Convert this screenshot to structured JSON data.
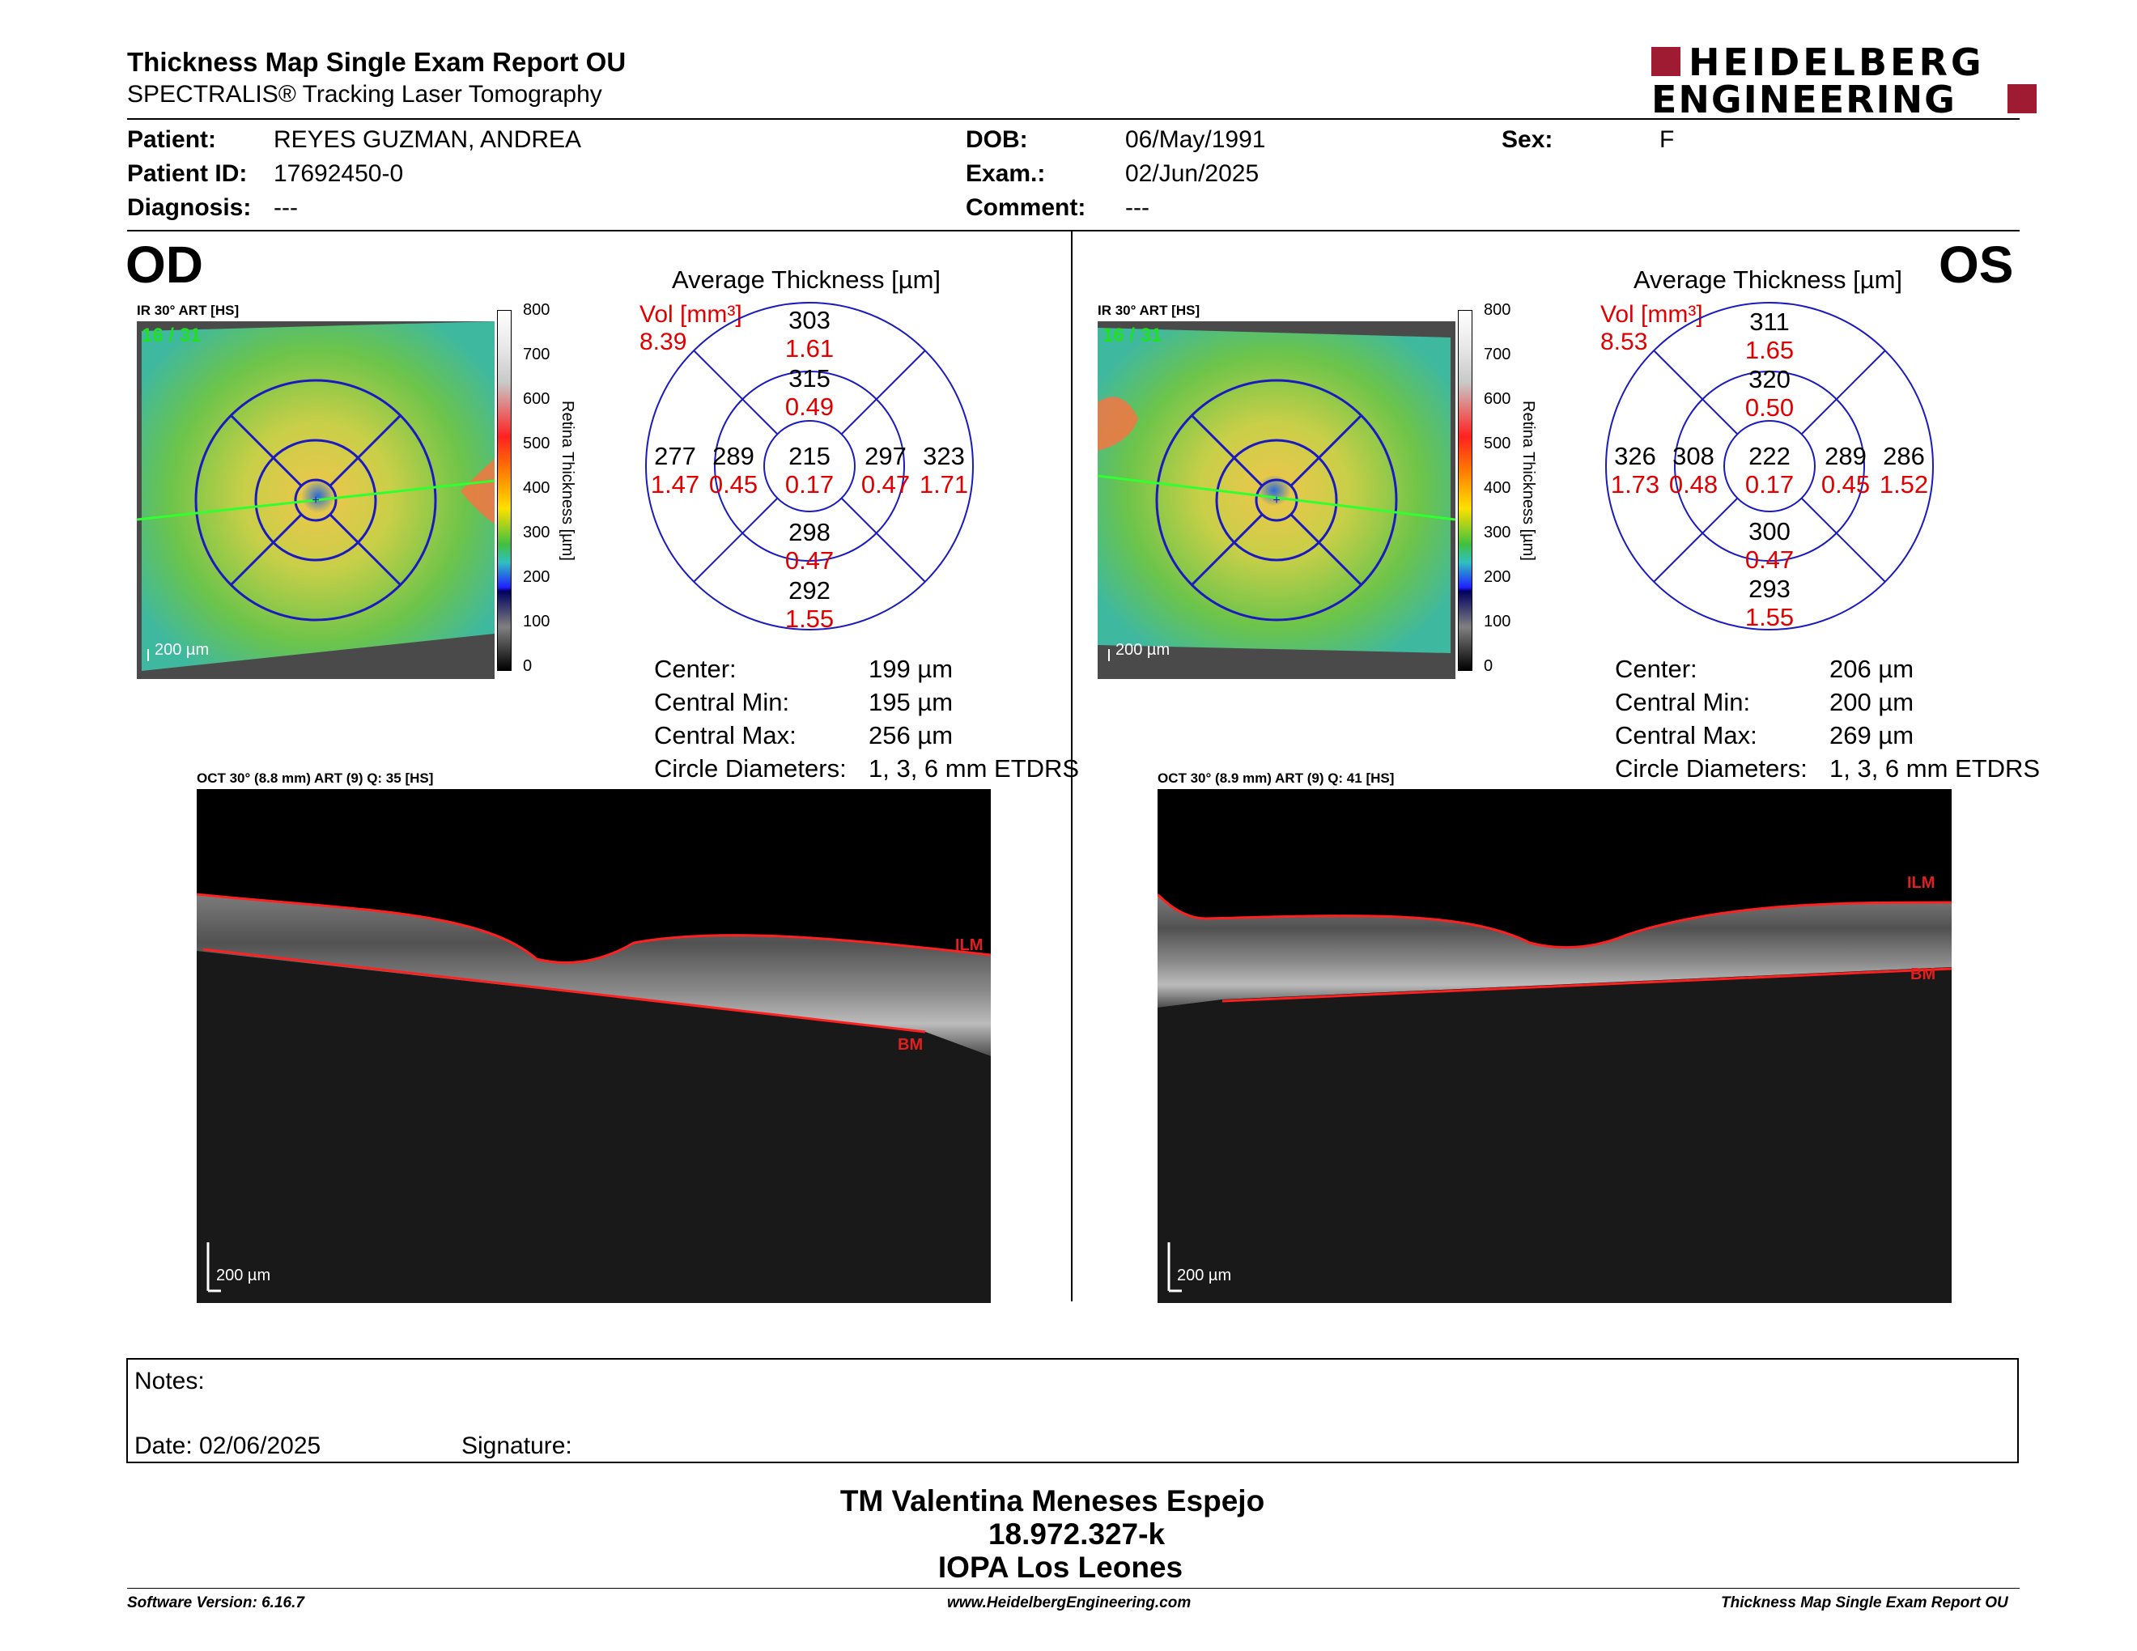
{
  "header": {
    "title": "Thickness Map Single Exam Report OU",
    "subtitle": "SPECTRALIS® Tracking Laser Tomography",
    "logo_line1": "HEIDELBERG",
    "logo_line2": "ENGINEERING"
  },
  "patient": {
    "patient_label": "Patient:",
    "patient_value": "REYES GUZMAN, ANDREA",
    "id_label": "Patient ID:",
    "id_value": "17692450-0",
    "diagnosis_label": "Diagnosis:",
    "diagnosis_value": "---",
    "dob_label": "DOB:",
    "dob_value": "06/May/1991",
    "exam_label": "Exam.:",
    "exam_value": "02/Jun/2025",
    "comment_label": "Comment:",
    "comment_value": "---",
    "sex_label": "Sex:",
    "sex_value": "F"
  },
  "od": {
    "eye": "OD",
    "ir_label": "IR 30° ART [HS]",
    "frame": "16 / 31",
    "scale": "200 µm",
    "avg_title": "Average Thickness [µm]",
    "vol_label": "Vol [mm³]",
    "vol_value": "8.39",
    "grid": {
      "center": {
        "t": "215",
        "v": "0.17"
      },
      "inner_sup": {
        "t": "315",
        "v": "0.49"
      },
      "inner_inf": {
        "t": "298",
        "v": "0.47"
      },
      "inner_nasal_left": {
        "t": "289",
        "v": "0.45"
      },
      "inner_right": {
        "t": "297",
        "v": "0.47"
      },
      "outer_sup": {
        "t": "303",
        "v": "1.61"
      },
      "outer_inf": {
        "t": "292",
        "v": "1.55"
      },
      "outer_left": {
        "t": "277",
        "v": "1.47"
      },
      "outer_right": {
        "t": "323",
        "v": "1.71"
      }
    },
    "stats": {
      "center_label": "Center:",
      "center_value": "199 µm",
      "min_label": "Central Min:",
      "min_value": "195 µm",
      "max_label": "Central Max:",
      "max_value": "256 µm",
      "diam_label": "Circle Diameters:",
      "diam_value": "1, 3, 6 mm ETDRS"
    },
    "oct_label": "OCT 30° (8.8 mm) ART (9) Q: 35 [HS]",
    "ilm": "ILM",
    "bm": "BM"
  },
  "os": {
    "eye": "OS",
    "ir_label": "IR 30° ART [HS]",
    "frame": "16 / 31",
    "scale": "200 µm",
    "avg_title": "Average Thickness [µm]",
    "vol_label": "Vol [mm³]",
    "vol_value": "8.53",
    "grid": {
      "center": {
        "t": "222",
        "v": "0.17"
      },
      "inner_sup": {
        "t": "320",
        "v": "0.50"
      },
      "inner_inf": {
        "t": "300",
        "v": "0.47"
      },
      "inner_left": {
        "t": "308",
        "v": "0.48"
      },
      "inner_right": {
        "t": "289",
        "v": "0.45"
      },
      "outer_sup": {
        "t": "311",
        "v": "1.65"
      },
      "outer_inf": {
        "t": "293",
        "v": "1.55"
      },
      "outer_left": {
        "t": "326",
        "v": "1.73"
      },
      "outer_right": {
        "t": "286",
        "v": "1.52"
      }
    },
    "stats": {
      "center_label": "Center:",
      "center_value": "206 µm",
      "min_label": "Central Min:",
      "min_value": "200 µm",
      "max_label": "Central Max:",
      "max_value": "269 µm",
      "diam_label": "Circle Diameters:",
      "diam_value": "1, 3, 6 mm ETDRS"
    },
    "oct_label": "OCT 30° (8.9 mm) ART (9) Q: 41 [HS]",
    "ilm": "ILM",
    "bm": "BM"
  },
  "colorbar": {
    "ticks": [
      "800",
      "700",
      "600",
      "500",
      "400",
      "300",
      "200",
      "100",
      "0"
    ],
    "axis_label": "Retina  Thickness [µm]"
  },
  "notes": {
    "notes_label": "Notes:",
    "date_label": "Date: 02/06/2025",
    "signature_label": "Signature:"
  },
  "signer": {
    "name": "TM Valentina Meneses Espejo",
    "id": "18.972.327-k",
    "place": "IOPA Los Leones"
  },
  "footer": {
    "version": "Software Version: 6.16.7",
    "url": "www.HeidelbergEngineering.com",
    "report": "Thickness Map Single Exam Report OU"
  },
  "colors": {
    "accent_red": "#e00000",
    "logo_red": "#9e1b32",
    "grid_blue": "#1a1ac0"
  }
}
